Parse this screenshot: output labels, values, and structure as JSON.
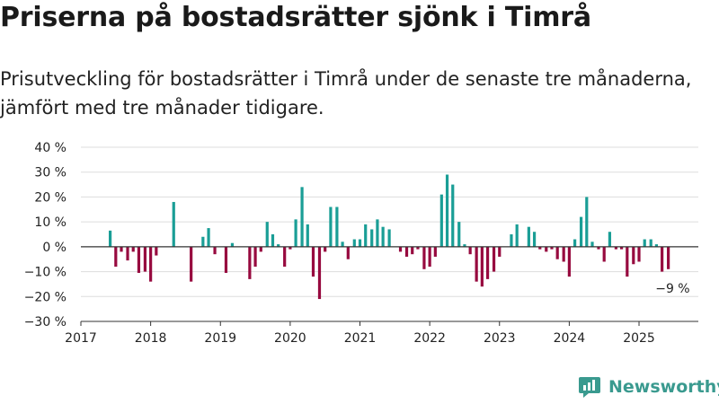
{
  "header": {
    "title": "Priserna på bostadsrätter sjönk i Timrå",
    "subtitle": "Prisutveckling för bostadsrätter i Timrå under de senaste tre månaderna, jämfört med tre månader tidigare."
  },
  "brand": {
    "name": "Newsworthy",
    "icon": "newsworthy-logo-icon",
    "color": "#3a9a8f"
  },
  "colors": {
    "positive": "#1a9e96",
    "negative": "#970a3f",
    "grid": "#dddddd",
    "axis": "#333333"
  },
  "chart_data": {
    "type": "bar",
    "ylim": [
      -30,
      40
    ],
    "yticks": [
      -30,
      -20,
      -10,
      0,
      10,
      20,
      30,
      40
    ],
    "ytick_labels": [
      "−30 %",
      "−20 %",
      "−10 %",
      "0 %",
      "10 %",
      "20 %",
      "30 %",
      "40 %"
    ],
    "xlim": [
      2017.0,
      2025.85
    ],
    "xticks": [
      "2017",
      "2018",
      "2019",
      "2020",
      "2021",
      "2022",
      "2023",
      "2024",
      "2025"
    ],
    "grid": true,
    "annotation": "−9 %",
    "x": [
      2017.42,
      2017.5,
      2017.58,
      2017.67,
      2017.75,
      2017.83,
      2017.92,
      2018.0,
      2018.08,
      2018.33,
      2018.58,
      2018.75,
      2018.83,
      2018.92,
      2019.08,
      2019.17,
      2019.42,
      2019.5,
      2019.58,
      2019.67,
      2019.75,
      2019.83,
      2019.92,
      2020.0,
      2020.08,
      2020.17,
      2020.25,
      2020.33,
      2020.42,
      2020.5,
      2020.58,
      2020.67,
      2020.75,
      2020.83,
      2020.92,
      2021.0,
      2021.08,
      2021.17,
      2021.25,
      2021.33,
      2021.42,
      2021.58,
      2021.67,
      2021.75,
      2021.83,
      2021.92,
      2022.0,
      2022.08,
      2022.17,
      2022.25,
      2022.33,
      2022.42,
      2022.5,
      2022.58,
      2022.67,
      2022.75,
      2022.83,
      2022.92,
      2023.0,
      2023.17,
      2023.25,
      2023.42,
      2023.5,
      2023.58,
      2023.67,
      2023.75,
      2023.83,
      2023.92,
      2024.0,
      2024.08,
      2024.17,
      2024.25,
      2024.33,
      2024.42,
      2024.5,
      2024.58,
      2024.67,
      2024.75,
      2024.83,
      2024.92,
      2025.0,
      2025.08,
      2025.17,
      2025.25,
      2025.33,
      2025.42
    ],
    "values": [
      6.5,
      -8,
      -2,
      -5.5,
      -2,
      -10.5,
      -10,
      -14,
      -3.5,
      18,
      -14,
      4,
      7.5,
      -3,
      -10.5,
      1.5,
      -13,
      -8,
      -2,
      10,
      5,
      1,
      -8,
      -1,
      11,
      24,
      9,
      -12,
      -21,
      -2,
      16,
      16,
      2,
      -5,
      3,
      3,
      9,
      7,
      11,
      8,
      7,
      -2,
      -4,
      -3,
      -1,
      -9,
      -8,
      -4,
      21,
      29,
      25,
      10,
      1,
      -3,
      -14,
      -16,
      -13,
      -10,
      -4,
      5,
      9,
      8,
      6,
      -1,
      -2,
      -1,
      -5,
      -6,
      -12,
      3,
      12,
      20,
      2,
      -1,
      -6,
      6,
      -1,
      -1,
      -12,
      -7,
      -6,
      3,
      3,
      1,
      -10,
      -9
    ]
  }
}
